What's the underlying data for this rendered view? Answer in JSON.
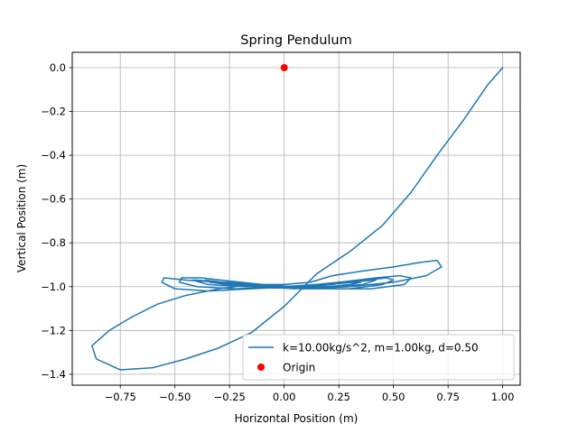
{
  "chart_data": {
    "type": "line",
    "title": "Spring Pendulum",
    "xlabel": "Horizontal Position (m)",
    "ylabel": "Vertical Position (m)",
    "xlim": [
      -0.97,
      1.08
    ],
    "ylim": [
      -1.45,
      0.07
    ],
    "x_ticks": [
      -0.75,
      -0.5,
      -0.25,
      0.0,
      0.25,
      0.5,
      0.75,
      1.0
    ],
    "x_tick_labels": [
      "−0.75",
      "−0.50",
      "−0.25",
      "0.00",
      "0.25",
      "0.50",
      "0.75",
      "1.00"
    ],
    "y_ticks": [
      0.0,
      -0.2,
      -0.4,
      -0.6,
      -0.8,
      -1.0,
      -1.2,
      -1.4
    ],
    "y_tick_labels": [
      "0.0",
      "−0.2",
      "−0.4",
      "−0.6",
      "−0.8",
      "−1.0",
      "−1.2",
      "−1.4"
    ],
    "grid": true,
    "legend_position": "lower-right",
    "series": [
      {
        "name": "k=10.00kg/s^2, m=1.00kg, d=0.50",
        "kind": "line",
        "color": "#1f77b4",
        "x": [
          1.0,
          0.93,
          0.82,
          0.7,
          0.58,
          0.45,
          0.3,
          0.15,
          0.0,
          -0.15,
          -0.3,
          -0.45,
          -0.6,
          -0.75,
          -0.86,
          -0.88,
          -0.8,
          -0.7,
          -0.58,
          -0.45,
          -0.3,
          -0.15,
          0.0,
          0.12,
          0.22,
          0.35,
          0.5,
          0.62,
          0.7,
          0.72,
          0.65,
          0.5,
          0.3,
          0.1,
          -0.1,
          -0.3,
          -0.45,
          -0.55,
          -0.56,
          -0.5,
          -0.35,
          -0.15,
          0.05,
          0.25,
          0.42,
          0.53,
          0.58,
          0.55,
          0.4,
          0.2,
          0.0,
          -0.2,
          -0.38,
          -0.47,
          -0.48,
          -0.4,
          -0.22,
          0.0,
          0.2,
          0.38,
          0.47,
          0.5,
          0.45,
          0.3,
          0.1,
          -0.1,
          -0.28,
          -0.4,
          -0.42,
          -0.35,
          -0.18,
          0.0,
          0.18,
          0.32,
          0.4,
          0.42,
          0.36,
          0.22,
          0.05,
          -0.12,
          -0.26,
          -0.34,
          -0.36,
          -0.28,
          -0.12,
          0.05,
          0.2,
          0.3,
          0.35,
          0.32,
          0.2,
          0.05,
          -0.1,
          -0.22,
          -0.28,
          -0.26,
          -0.15,
          0.0,
          0.12,
          0.22,
          0.28,
          0.26,
          0.15,
          0.0,
          -0.1,
          -0.18,
          -0.2,
          -0.12,
          0.0
        ],
        "y": [
          0.0,
          -0.08,
          -0.24,
          -0.4,
          -0.57,
          -0.72,
          -0.84,
          -0.94,
          -1.09,
          -1.21,
          -1.28,
          -1.33,
          -1.37,
          -1.38,
          -1.33,
          -1.27,
          -1.2,
          -1.14,
          -1.08,
          -1.04,
          -1.01,
          -0.99,
          -0.99,
          -0.98,
          -0.95,
          -0.93,
          -0.91,
          -0.89,
          -0.88,
          -0.91,
          -0.95,
          -0.98,
          -1.0,
          -1.01,
          -1.0,
          -0.98,
          -0.97,
          -0.96,
          -0.98,
          -1.01,
          -1.02,
          -1.01,
          -1.0,
          -0.98,
          -0.96,
          -0.95,
          -0.96,
          -0.99,
          -1.01,
          -1.01,
          -1.0,
          -0.98,
          -0.96,
          -0.96,
          -0.98,
          -1.0,
          -1.01,
          -1.0,
          -0.99,
          -0.97,
          -0.96,
          -0.97,
          -0.99,
          -1.01,
          -1.01,
          -1.0,
          -0.98,
          -0.97,
          -0.97,
          -0.99,
          -1.0,
          -1.0,
          -0.99,
          -0.98,
          -0.97,
          -0.97,
          -0.99,
          -1.0,
          -1.01,
          -1.0,
          -0.99,
          -0.98,
          -0.97,
          -0.98,
          -0.99,
          -1.0,
          -1.0,
          -0.99,
          -0.98,
          -0.98,
          -0.99,
          -1.0,
          -1.0,
          -0.99,
          -0.98,
          -0.98,
          -0.99,
          -1.0,
          -1.0,
          -0.99,
          -0.98,
          -0.98,
          -0.99,
          -1.0,
          -1.0,
          -0.99,
          -0.99,
          -0.99,
          -1.0
        ]
      },
      {
        "name": "Origin",
        "kind": "scatter",
        "color": "#ff0000",
        "x": [
          0.0
        ],
        "y": [
          0.0
        ]
      }
    ]
  }
}
